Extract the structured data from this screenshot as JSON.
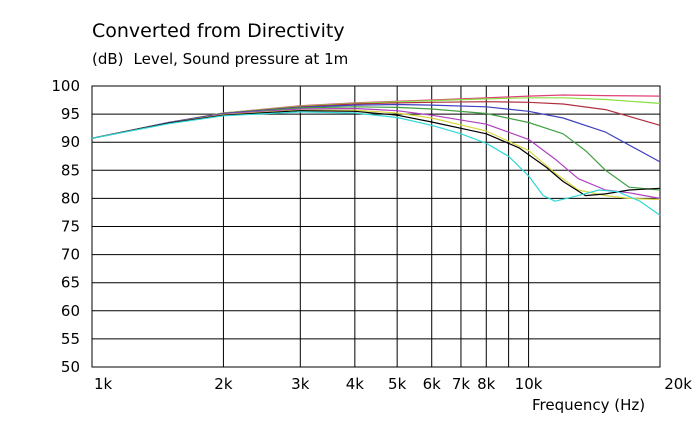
{
  "chart_data": {
    "type": "line",
    "title": "Converted from Directivity",
    "y_unit": "(dB)",
    "ylabel": "Level, Sound pressure at 1m",
    "xlabel": "Frequency  (Hz)",
    "x_scale": "log",
    "xlim": [
      1000,
      20000
    ],
    "ylim": [
      50,
      100
    ],
    "grid": true,
    "x_ticks": [
      {
        "value": 1000,
        "label": "1k"
      },
      {
        "value": 2000,
        "label": "2k"
      },
      {
        "value": 3000,
        "label": "3k"
      },
      {
        "value": 4000,
        "label": "4k"
      },
      {
        "value": 5000,
        "label": "5k"
      },
      {
        "value": 6000,
        "label": "6k"
      },
      {
        "value": 7000,
        "label": "7k"
      },
      {
        "value": 8000,
        "label": "8k"
      },
      {
        "value": 10000,
        "label": "10k"
      },
      {
        "value": 20000,
        "label": "20k"
      }
    ],
    "x_minor_grid": [
      9000
    ],
    "y_ticks": [
      100,
      95,
      90,
      85,
      80,
      75,
      70,
      65,
      60,
      55,
      50
    ],
    "series": [
      {
        "color": "#e0407a",
        "points": [
          [
            1000,
            90.7
          ],
          [
            1500,
            93.5
          ],
          [
            2000,
            95.2
          ],
          [
            3000,
            96.5
          ],
          [
            4000,
            97.0
          ],
          [
            5000,
            97.3
          ],
          [
            6000,
            97.5
          ],
          [
            8000,
            97.9
          ],
          [
            10000,
            98.2
          ],
          [
            12000,
            98.4
          ],
          [
            15000,
            98.3
          ],
          [
            20000,
            98.2
          ]
        ]
      },
      {
        "color": "#88e040",
        "points": [
          [
            1000,
            90.7
          ],
          [
            1500,
            93.5
          ],
          [
            2000,
            95.2
          ],
          [
            3000,
            96.4
          ],
          [
            4000,
            96.9
          ],
          [
            5000,
            97.2
          ],
          [
            6000,
            97.4
          ],
          [
            8000,
            97.7
          ],
          [
            10000,
            97.9
          ],
          [
            12000,
            97.9
          ],
          [
            15000,
            97.6
          ],
          [
            20000,
            96.9
          ]
        ]
      },
      {
        "color": "#b03040",
        "points": [
          [
            1000,
            90.7
          ],
          [
            1500,
            93.5
          ],
          [
            2000,
            95.1
          ],
          [
            3000,
            96.3
          ],
          [
            4000,
            96.8
          ],
          [
            5000,
            97.0
          ],
          [
            6000,
            97.1
          ],
          [
            8000,
            97.2
          ],
          [
            10000,
            97.1
          ],
          [
            12000,
            96.8
          ],
          [
            15000,
            95.8
          ],
          [
            20000,
            93.0
          ]
        ]
      },
      {
        "color": "#4040c0",
        "points": [
          [
            1000,
            90.7
          ],
          [
            1500,
            93.5
          ],
          [
            2000,
            95.1
          ],
          [
            3000,
            96.2
          ],
          [
            4000,
            96.6
          ],
          [
            5000,
            96.7
          ],
          [
            6000,
            96.6
          ],
          [
            8000,
            96.3
          ],
          [
            10000,
            95.5
          ],
          [
            12000,
            94.3
          ],
          [
            15000,
            91.8
          ],
          [
            20000,
            86.5
          ]
        ]
      },
      {
        "color": "#40a040",
        "points": [
          [
            1000,
            90.7
          ],
          [
            1500,
            93.4
          ],
          [
            2000,
            95.0
          ],
          [
            3000,
            96.1
          ],
          [
            4000,
            96.3
          ],
          [
            5000,
            96.2
          ],
          [
            6000,
            95.9
          ],
          [
            8000,
            95.1
          ],
          [
            10000,
            93.5
          ],
          [
            12000,
            91.5
          ],
          [
            13500,
            88.5
          ],
          [
            15000,
            85.0
          ],
          [
            17000,
            82.0
          ],
          [
            20000,
            81.5
          ]
        ]
      },
      {
        "color": "#b040c0",
        "points": [
          [
            1000,
            90.7
          ],
          [
            1500,
            93.4
          ],
          [
            2000,
            95.0
          ],
          [
            3000,
            95.9
          ],
          [
            4000,
            96.0
          ],
          [
            5000,
            95.6
          ],
          [
            6000,
            94.8
          ],
          [
            8000,
            93.2
          ],
          [
            10000,
            90.5
          ],
          [
            11500,
            87.0
          ],
          [
            13000,
            83.5
          ],
          [
            15000,
            81.5
          ],
          [
            17000,
            81.0
          ],
          [
            20000,
            80.0
          ]
        ]
      },
      {
        "color": "#d8d840",
        "points": [
          [
            1000,
            90.7
          ],
          [
            1500,
            93.4
          ],
          [
            2000,
            94.9
          ],
          [
            3000,
            95.7
          ],
          [
            4000,
            95.7
          ],
          [
            5000,
            95.2
          ],
          [
            6000,
            94.3
          ],
          [
            8000,
            92.0
          ],
          [
            10000,
            88.5
          ],
          [
            11500,
            84.5
          ],
          [
            13000,
            81.5
          ],
          [
            15000,
            80.5
          ],
          [
            17000,
            80.0
          ],
          [
            20000,
            79.8
          ]
        ]
      },
      {
        "color": "#000000",
        "points": [
          [
            1000,
            90.7
          ],
          [
            1500,
            93.4
          ],
          [
            2000,
            94.8
          ],
          [
            3000,
            95.6
          ],
          [
            4000,
            95.5
          ],
          [
            5000,
            94.8
          ],
          [
            6000,
            93.6
          ],
          [
            8000,
            91.5
          ],
          [
            9500,
            89.0
          ],
          [
            11000,
            85.5
          ],
          [
            12000,
            83.0
          ],
          [
            13500,
            80.5
          ],
          [
            15000,
            80.8
          ],
          [
            17000,
            81.5
          ],
          [
            20000,
            81.8
          ]
        ]
      },
      {
        "color": "#30d8d8",
        "points": [
          [
            1000,
            90.7
          ],
          [
            1500,
            93.3
          ],
          [
            2000,
            94.7
          ],
          [
            3000,
            95.4
          ],
          [
            4000,
            95.2
          ],
          [
            5000,
            94.4
          ],
          [
            6000,
            93.0
          ],
          [
            7000,
            91.5
          ],
          [
            8000,
            89.8
          ],
          [
            9000,
            87.5
          ],
          [
            10000,
            84.0
          ],
          [
            10800,
            80.5
          ],
          [
            11500,
            79.5
          ],
          [
            13000,
            80.5
          ],
          [
            14500,
            81.5
          ],
          [
            16000,
            81.2
          ],
          [
            18000,
            79.5
          ],
          [
            20000,
            77.0
          ]
        ]
      }
    ]
  }
}
